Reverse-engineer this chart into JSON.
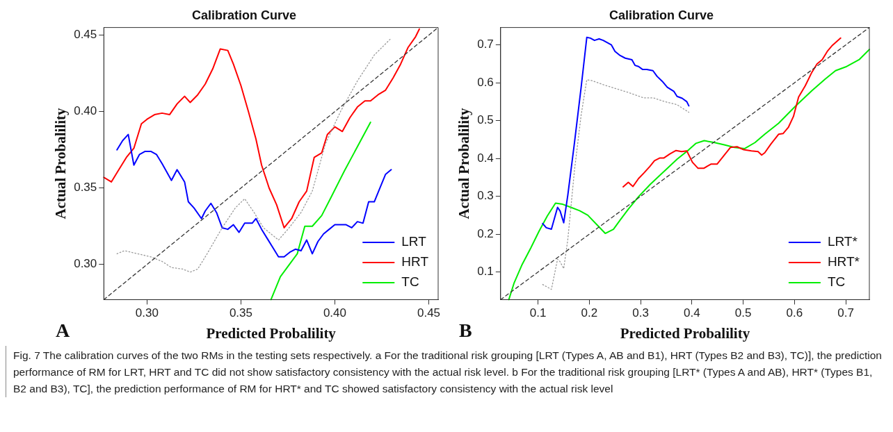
{
  "chart_data": [
    {
      "type": "line",
      "title": "Calibration Curve",
      "xlabel": "Predicted Probalility",
      "ylabel": "Actual Probalility",
      "annotations": [
        "A"
      ],
      "xlim": [
        0.277,
        0.455
      ],
      "ylim": [
        0.277,
        0.455
      ],
      "xticks": [
        {
          "value": 0.3,
          "label": "0.30"
        },
        {
          "value": 0.35,
          "label": "0.35"
        },
        {
          "value": 0.4,
          "label": "0.40"
        },
        {
          "value": 0.45,
          "label": "0.45"
        }
      ],
      "yticks": [
        {
          "value": 0.3,
          "label": "0.30"
        },
        {
          "value": 0.35,
          "label": "0.35"
        },
        {
          "value": 0.4,
          "label": "0.40"
        },
        {
          "value": 0.45,
          "label": "0.45"
        }
      ],
      "grid": false,
      "legend": "bottom right",
      "marker": "none",
      "line_style": "solid",
      "series": [
        {
          "color": "#333333",
          "line_style": "dashed",
          "x": [
            0.277,
            0.455
          ],
          "values": [
            0.277,
            0.455
          ]
        },
        {
          "color": "#999999",
          "line_style": "dotted",
          "x": [
            0.284,
            0.288,
            0.302,
            0.308,
            0.313,
            0.319,
            0.323,
            0.327,
            0.332,
            0.34,
            0.347,
            0.352,
            0.357,
            0.362,
            0.37,
            0.375,
            0.382,
            0.388,
            0.395,
            0.403,
            0.412,
            0.421,
            0.43
          ],
          "values": [
            0.307,
            0.309,
            0.305,
            0.302,
            0.298,
            0.297,
            0.295,
            0.297,
            0.307,
            0.324,
            0.337,
            0.343,
            0.334,
            0.324,
            0.316,
            0.323,
            0.334,
            0.348,
            0.379,
            0.4,
            0.42,
            0.437,
            0.448
          ]
        },
        {
          "name": "LRT",
          "color": "#0000ff",
          "x": [
            0.284,
            0.287,
            0.29,
            0.293,
            0.296,
            0.299,
            0.302,
            0.305,
            0.308,
            0.313,
            0.316,
            0.32,
            0.322,
            0.325,
            0.329,
            0.331,
            0.334,
            0.337,
            0.34,
            0.343,
            0.346,
            0.349,
            0.352,
            0.356,
            0.358,
            0.361,
            0.364,
            0.367,
            0.37,
            0.373,
            0.376,
            0.379,
            0.382,
            0.385,
            0.388,
            0.391,
            0.394,
            0.397,
            0.4,
            0.403,
            0.406,
            0.409,
            0.412,
            0.415,
            0.418,
            0.421,
            0.424,
            0.427,
            0.43
          ],
          "values": [
            0.375,
            0.381,
            0.385,
            0.365,
            0.372,
            0.374,
            0.374,
            0.372,
            0.366,
            0.355,
            0.362,
            0.354,
            0.341,
            0.337,
            0.33,
            0.335,
            0.34,
            0.334,
            0.324,
            0.323,
            0.326,
            0.321,
            0.327,
            0.327,
            0.33,
            0.323,
            0.317,
            0.311,
            0.305,
            0.305,
            0.308,
            0.31,
            0.309,
            0.316,
            0.307,
            0.315,
            0.32,
            0.323,
            0.326,
            0.326,
            0.326,
            0.324,
            0.328,
            0.327,
            0.341,
            0.341,
            0.35,
            0.359,
            0.362
          ]
        },
        {
          "name": "HRT",
          "color": "#ff0000",
          "x": [
            0.277,
            0.281,
            0.285,
            0.289,
            0.293,
            0.297,
            0.3,
            0.304,
            0.308,
            0.312,
            0.316,
            0.32,
            0.323,
            0.327,
            0.331,
            0.335,
            0.339,
            0.343,
            0.346,
            0.35,
            0.354,
            0.358,
            0.361,
            0.365,
            0.369,
            0.373,
            0.377,
            0.381,
            0.385,
            0.389,
            0.393,
            0.396,
            0.4,
            0.404,
            0.408,
            0.412,
            0.416,
            0.419,
            0.423,
            0.427,
            0.431,
            0.435,
            0.439,
            0.443,
            0.445
          ],
          "values": [
            0.357,
            0.354,
            0.362,
            0.37,
            0.376,
            0.392,
            0.395,
            0.398,
            0.399,
            0.398,
            0.405,
            0.41,
            0.406,
            0.411,
            0.418,
            0.428,
            0.441,
            0.44,
            0.431,
            0.417,
            0.4,
            0.382,
            0.365,
            0.35,
            0.339,
            0.324,
            0.33,
            0.341,
            0.348,
            0.37,
            0.373,
            0.385,
            0.39,
            0.387,
            0.396,
            0.403,
            0.407,
            0.407,
            0.411,
            0.414,
            0.422,
            0.431,
            0.442,
            0.449,
            0.454
          ]
        },
        {
          "name": "TC",
          "color": "#00ee00",
          "x": [
            0.366,
            0.371,
            0.38,
            0.384,
            0.388,
            0.393,
            0.398,
            0.405,
            0.412,
            0.419
          ],
          "values": [
            0.277,
            0.292,
            0.307,
            0.325,
            0.325,
            0.332,
            0.344,
            0.361,
            0.377,
            0.393
          ]
        }
      ]
    },
    {
      "type": "line",
      "title": "Calibration Curve",
      "xlabel": "Predicted Probalility",
      "ylabel": "Actual Probalility",
      "annotations": [
        "B"
      ],
      "xlim": [
        0.027,
        0.746
      ],
      "ylim": [
        0.027,
        0.746
      ],
      "xticks": [
        0.1,
        0.2,
        0.3,
        0.4,
        0.5,
        0.6,
        0.7
      ],
      "yticks": [
        0.1,
        0.2,
        0.3,
        0.4,
        0.5,
        0.6,
        0.7
      ],
      "grid": false,
      "legend": "bottom right",
      "marker": "none",
      "line_style": "solid",
      "series": [
        {
          "color": "#333333",
          "line_style": "dashed",
          "x": [
            0.027,
            0.746
          ],
          "values": [
            0.027,
            0.746
          ]
        },
        {
          "color": "#999999",
          "line_style": "dotted",
          "x": [
            0.109,
            0.126,
            0.138,
            0.143,
            0.15,
            0.158,
            0.171,
            0.184,
            0.195,
            0.204,
            0.227,
            0.253,
            0.279,
            0.306,
            0.325,
            0.345,
            0.371,
            0.394
          ],
          "values": [
            0.067,
            0.054,
            0.134,
            0.127,
            0.109,
            0.186,
            0.369,
            0.515,
            0.608,
            0.606,
            0.595,
            0.584,
            0.573,
            0.56,
            0.56,
            0.551,
            0.542,
            0.522
          ]
        },
        {
          "name": "LRT*",
          "color": "#0000ff",
          "x": [
            0.109,
            0.116,
            0.126,
            0.138,
            0.143,
            0.15,
            0.158,
            0.171,
            0.184,
            0.195,
            0.202,
            0.21,
            0.219,
            0.227,
            0.235,
            0.243,
            0.25,
            0.26,
            0.27,
            0.283,
            0.289,
            0.296,
            0.304,
            0.312,
            0.324,
            0.332,
            0.342,
            0.352,
            0.365,
            0.371,
            0.381,
            0.39,
            0.394
          ],
          "values": [
            0.228,
            0.217,
            0.213,
            0.271,
            0.261,
            0.23,
            0.303,
            0.442,
            0.588,
            0.72,
            0.718,
            0.712,
            0.716,
            0.712,
            0.706,
            0.7,
            0.683,
            0.672,
            0.665,
            0.661,
            0.646,
            0.643,
            0.635,
            0.635,
            0.632,
            0.617,
            0.604,
            0.588,
            0.577,
            0.564,
            0.559,
            0.55,
            0.539
          ]
        },
        {
          "name": "HRT*",
          "color": "#ff0000",
          "x": [
            0.266,
            0.276,
            0.285,
            0.296,
            0.306,
            0.318,
            0.327,
            0.337,
            0.345,
            0.357,
            0.369,
            0.38,
            0.39,
            0.401,
            0.412,
            0.423,
            0.437,
            0.449,
            0.462,
            0.475,
            0.488,
            0.501,
            0.516,
            0.529,
            0.536,
            0.542,
            0.554,
            0.569,
            0.578,
            0.588,
            0.598,
            0.608,
            0.621,
            0.634,
            0.644,
            0.654,
            0.664,
            0.674,
            0.69
          ],
          "values": [
            0.325,
            0.337,
            0.326,
            0.347,
            0.361,
            0.379,
            0.394,
            0.401,
            0.401,
            0.412,
            0.421,
            0.418,
            0.42,
            0.39,
            0.374,
            0.374,
            0.385,
            0.385,
            0.407,
            0.429,
            0.431,
            0.423,
            0.42,
            0.418,
            0.409,
            0.415,
            0.438,
            0.464,
            0.466,
            0.482,
            0.511,
            0.562,
            0.592,
            0.628,
            0.65,
            0.661,
            0.683,
            0.699,
            0.718
          ]
        },
        {
          "name": "TC",
          "color": "#00ee00",
          "x": [
            0.043,
            0.053,
            0.069,
            0.086,
            0.102,
            0.118,
            0.134,
            0.148,
            0.164,
            0.181,
            0.197,
            0.214,
            0.231,
            0.247,
            0.26,
            0.276,
            0.296,
            0.319,
            0.345,
            0.371,
            0.394,
            0.408,
            0.424,
            0.444,
            0.463,
            0.483,
            0.503,
            0.523,
            0.542,
            0.569,
            0.601,
            0.634,
            0.66,
            0.68,
            0.7,
            0.726,
            0.746
          ],
          "values": [
            0.027,
            0.07,
            0.12,
            0.164,
            0.208,
            0.248,
            0.282,
            0.279,
            0.271,
            0.262,
            0.25,
            0.226,
            0.202,
            0.213,
            0.237,
            0.266,
            0.299,
            0.332,
            0.365,
            0.398,
            0.423,
            0.44,
            0.447,
            0.442,
            0.436,
            0.429,
            0.426,
            0.442,
            0.464,
            0.493,
            0.537,
            0.579,
            0.61,
            0.632,
            0.642,
            0.661,
            0.688
          ]
        }
      ]
    },
    {
      "type": "other",
      "annotations": [
        "Fig. 7  The calibration curves of the two RMs in the testing sets respectively. a For the traditional risk grouping [LRT (Types A, AB and B1), HRT (Types B2 and B3), TC)], the prediction performance of RM for LRT, HRT and TC did not show satisfactory consistency with the actual risk level. b For the traditional risk grouping [LRT* (Types A and AB), HRT* (Types B1, B2 and B3), TC], the prediction performance of RM for HRT* and TC showed satisfactory consistency with the actual risk level"
      ]
    }
  ]
}
